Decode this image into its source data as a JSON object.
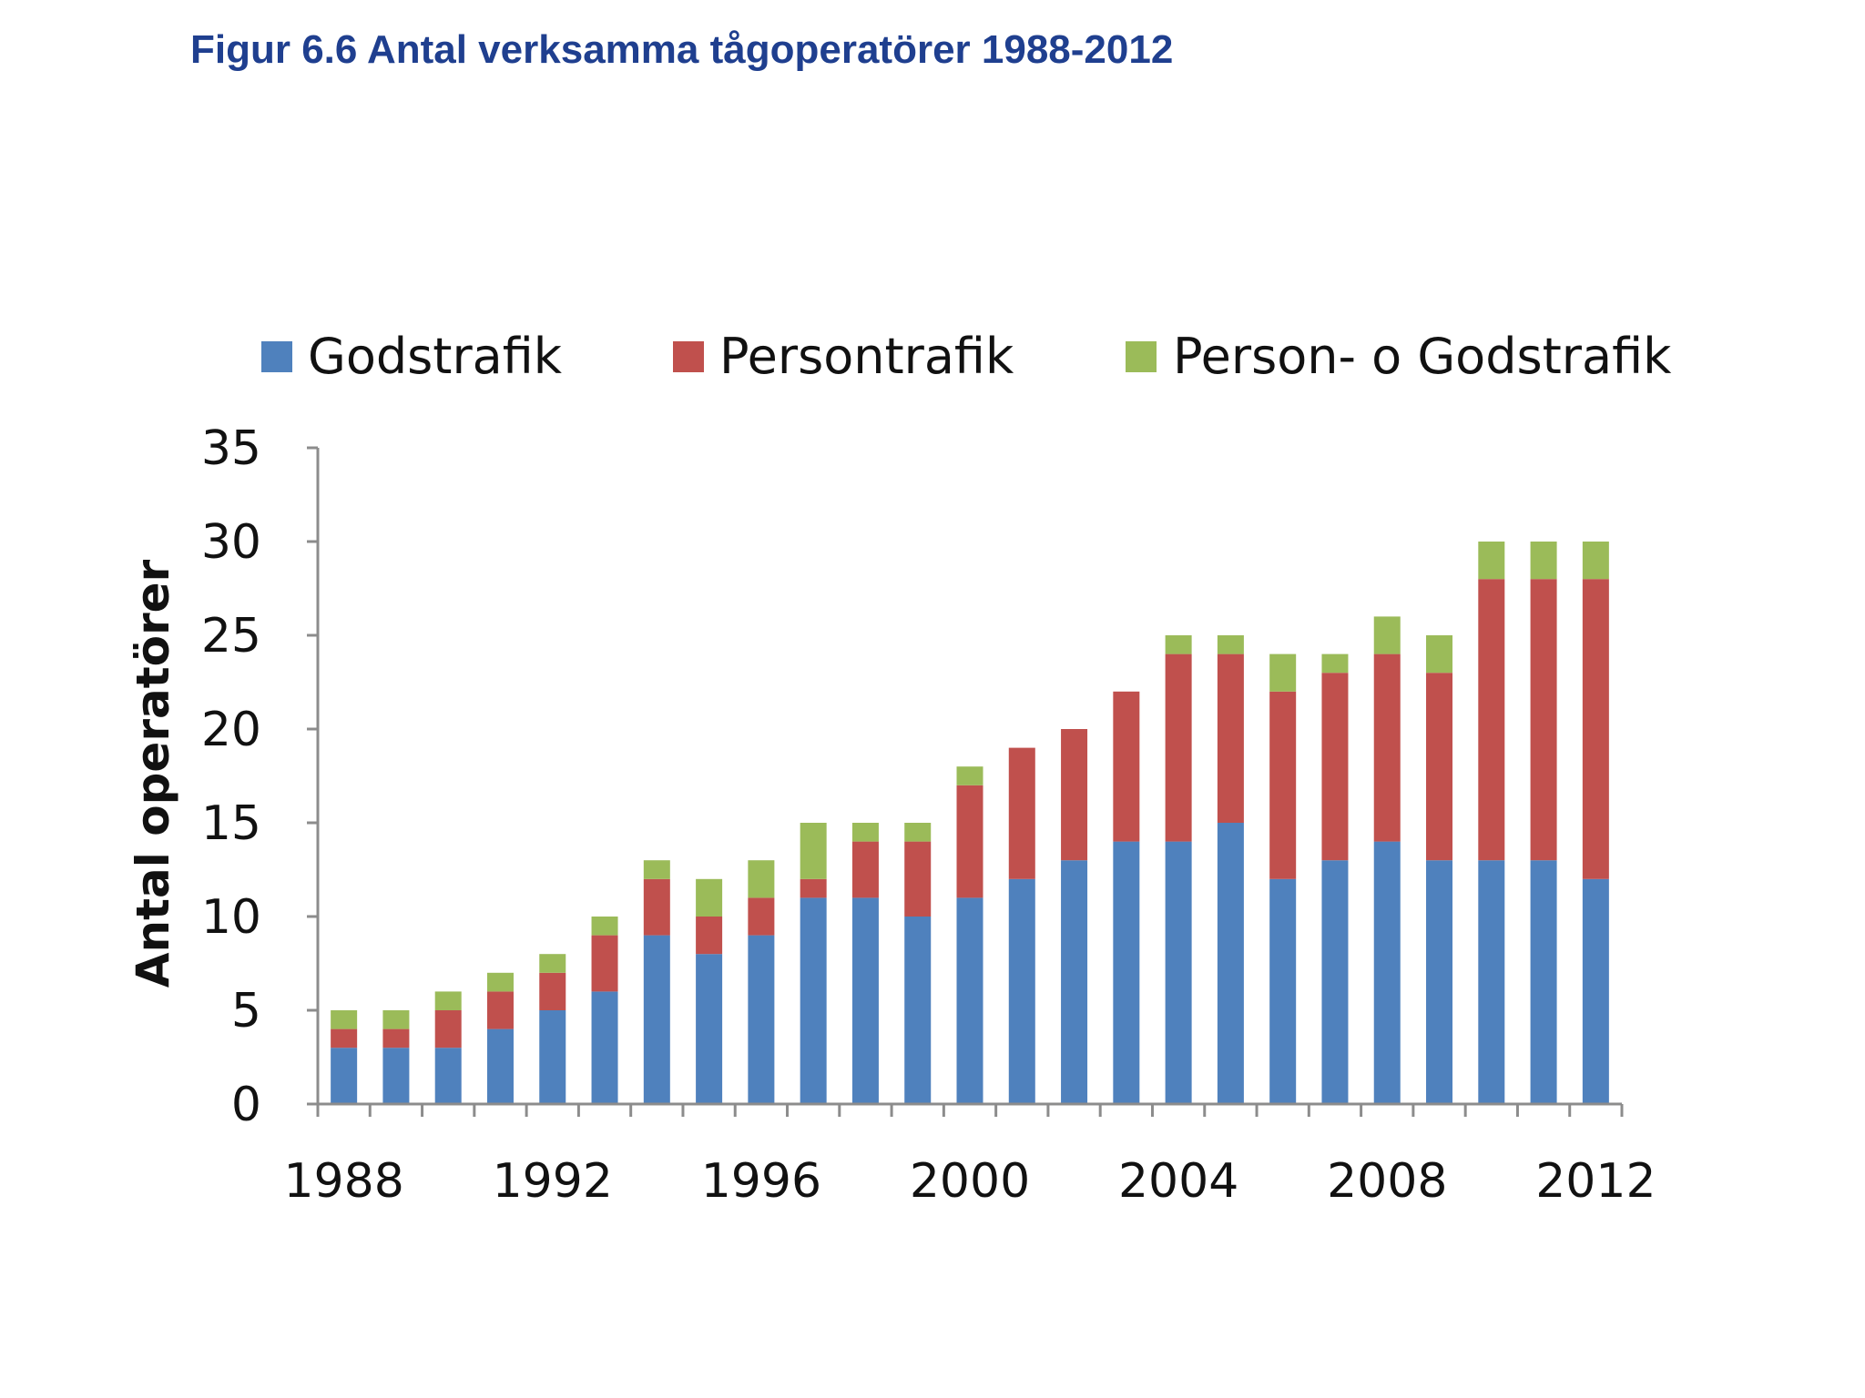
{
  "title": "Figur 6.6 Antal verksamma tågoperatörer 1988-2012",
  "chart_data": {
    "type": "bar",
    "stacked": true,
    "ylabel": "Antal operatörer",
    "xlabel": "",
    "ylim": [
      0,
      35
    ],
    "yticks": [
      0,
      5,
      10,
      15,
      20,
      25,
      30,
      35
    ],
    "xtick_labels": [
      "1988",
      "1992",
      "1996",
      "2000",
      "2004",
      "2008",
      "2012"
    ],
    "legend_position": "top",
    "categories": [
      "1988",
      "1989",
      "1990",
      "1991",
      "1992",
      "1993",
      "1994",
      "1995",
      "1996",
      "1997",
      "1998",
      "1999",
      "2000",
      "2001",
      "2002",
      "2003",
      "2004",
      "2005",
      "2006",
      "2007",
      "2008",
      "2009",
      "2010",
      "2011",
      "2012"
    ],
    "series": [
      {
        "name": "Godstrafik",
        "color": "#4f81bd",
        "values": [
          3,
          3,
          3,
          4,
          5,
          6,
          9,
          8,
          9,
          11,
          11,
          10,
          11,
          12,
          13,
          14,
          14,
          15,
          12,
          13,
          14,
          13,
          13,
          13,
          12
        ]
      },
      {
        "name": "Persontrafik",
        "color": "#c0504d",
        "values": [
          1,
          1,
          2,
          2,
          2,
          3,
          3,
          2,
          2,
          1,
          3,
          4,
          6,
          7,
          7,
          8,
          10,
          9,
          10,
          10,
          10,
          10,
          15,
          15,
          16
        ]
      },
      {
        "name": "Person- o Godstrafik",
        "color": "#9bbb59",
        "values": [
          1,
          1,
          1,
          1,
          1,
          1,
          1,
          2,
          2,
          3,
          1,
          1,
          1,
          0,
          0,
          0,
          1,
          1,
          2,
          1,
          2,
          2,
          2,
          2,
          2
        ]
      }
    ]
  }
}
